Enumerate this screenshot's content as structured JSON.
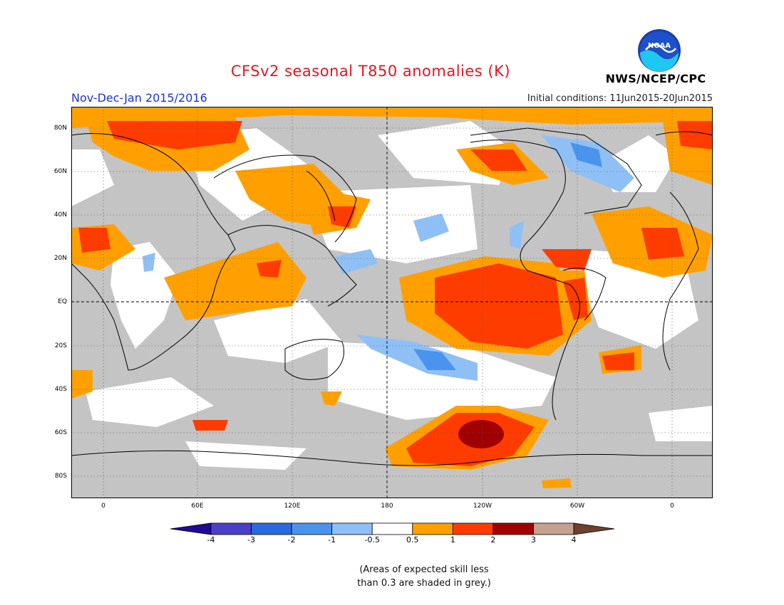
{
  "header": {
    "title": "CFSv2 seasonal T850 anomalies (K)",
    "period": "Nov-Dec-Jan 2015/2016",
    "initial_conditions": "Initial conditions: 11Jun2015-20Jun2015",
    "agency": "NWS/NCEP/CPC",
    "logo_text": "NOAA"
  },
  "map": {
    "lat_labels": [
      "80N",
      "60N",
      "40N",
      "20N",
      "EQ",
      "20S",
      "40S",
      "60S",
      "80S"
    ],
    "lon_labels": [
      "0",
      "60E",
      "120E",
      "180",
      "120W",
      "60W",
      "0"
    ],
    "colors": {
      "skill_mask_grey": "#c4c4c4",
      "ocean_background": "#ffffff",
      "coastline": "#000000"
    }
  },
  "colorbar": {
    "labels": [
      "-4",
      "-3",
      "-2",
      "-1",
      "-0.5",
      "0.5",
      "1",
      "2",
      "3",
      "4"
    ],
    "colors": [
      "#1e0a96",
      "#4a3fc8",
      "#2a6ae0",
      "#4a94ee",
      "#8fc0f5",
      "#ffffff",
      "#ffa000",
      "#ff3c00",
      "#a00000",
      "#c8a090",
      "#6e4030"
    ]
  },
  "note": {
    "line1": "(Areas of expected skill less",
    "line2": "than 0.3 are shaded in grey.)"
  }
}
